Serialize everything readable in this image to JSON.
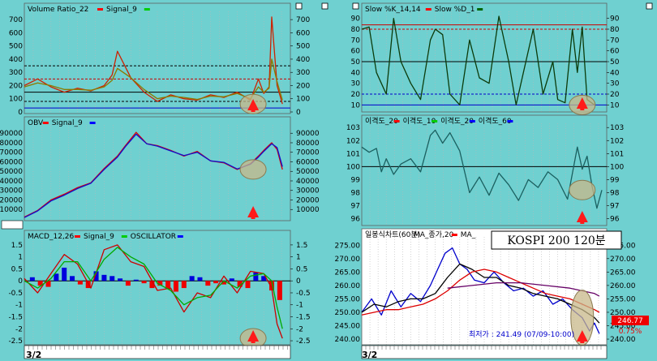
{
  "colors": {
    "bg": "#6fd0d0",
    "grid": "#b8b8b8",
    "price_panel_bg": "#ffffff",
    "marker": "#ff1a1a",
    "highlight": "#c8b88a"
  },
  "footer": {
    "left_date": "3/2",
    "right_date": "3/2"
  },
  "chart_data": [
    {
      "id": "volume_ratio",
      "type": "line",
      "title_parts": [
        {
          "text": "Volume Ratio_22",
          "color": "#000000",
          "marker": "#ff0000"
        },
        {
          "text": "Signal_9",
          "color": "#000000",
          "marker": "#00cc00"
        }
      ],
      "ylim": [
        0,
        750
      ],
      "yticks_left": [
        "700",
        "600",
        "500",
        "400",
        "300",
        "200",
        "100",
        "0"
      ],
      "yticks_right": [
        "700",
        "600",
        "500",
        "400",
        "300",
        "200",
        "100",
        "0"
      ],
      "ref_lines": [
        {
          "y": 350,
          "color": "#000000",
          "dash": true
        },
        {
          "y": 250,
          "color": "#cc0000",
          "dash": true
        },
        {
          "y": 150,
          "color": "#000000",
          "dash": false
        },
        {
          "y": 80,
          "color": "#000000",
          "dash": true
        },
        {
          "y": 30,
          "color": "#0000cc",
          "dash": false
        }
      ],
      "series": [
        {
          "color": "#cc2200",
          "x": [
            0,
            0.05,
            0.1,
            0.15,
            0.2,
            0.25,
            0.3,
            0.33,
            0.35,
            0.4,
            0.45,
            0.5,
            0.55,
            0.6,
            0.65,
            0.7,
            0.75,
            0.8,
            0.85,
            0.88,
            0.9,
            0.92,
            0.93,
            0.95,
            0.97
          ],
          "values": [
            200,
            250,
            190,
            150,
            180,
            160,
            200,
            280,
            460,
            260,
            150,
            80,
            130,
            100,
            90,
            130,
            110,
            150,
            90,
            250,
            140,
            190,
            720,
            200,
            60
          ]
        },
        {
          "color": "#8a7a00",
          "x": [
            0,
            0.05,
            0.1,
            0.15,
            0.2,
            0.25,
            0.3,
            0.33,
            0.35,
            0.4,
            0.45,
            0.5,
            0.55,
            0.6,
            0.65,
            0.7,
            0.75,
            0.8,
            0.85,
            0.88,
            0.9,
            0.92,
            0.93,
            0.95,
            0.97
          ],
          "values": [
            190,
            220,
            200,
            170,
            170,
            165,
            190,
            240,
            330,
            260,
            170,
            100,
            120,
            110,
            95,
            120,
            115,
            140,
            100,
            190,
            150,
            180,
            400,
            230,
            90
          ]
        }
      ]
    },
    {
      "id": "obv",
      "type": "line",
      "title_parts": [
        {
          "text": "OBV",
          "color": "#000000",
          "marker": "#ff0000"
        },
        {
          "text": "Signal_9",
          "color": "#000000",
          "marker": "#0000ff"
        }
      ],
      "ylim": [
        0,
        97000
      ],
      "yticks_left": [
        "90000",
        "80000",
        "70000",
        "60000",
        "50000",
        "40000",
        "30000",
        "20000",
        "10000"
      ],
      "yticks_right": [
        "90000",
        "80000",
        "70000",
        "60000",
        "50000",
        "40000",
        "30000",
        "20000",
        "10000"
      ],
      "series": [
        {
          "color": "#dd0000",
          "x": [
            0,
            0.05,
            0.1,
            0.15,
            0.2,
            0.25,
            0.3,
            0.35,
            0.38,
            0.42,
            0.46,
            0.5,
            0.55,
            0.6,
            0.65,
            0.7,
            0.75,
            0.8,
            0.85,
            0.88,
            0.9,
            0.93,
            0.95,
            0.97
          ],
          "values": [
            2000,
            9000,
            20000,
            26000,
            33000,
            38000,
            53000,
            66000,
            77000,
            91000,
            79000,
            77000,
            72000,
            66000,
            71000,
            61000,
            59000,
            52000,
            58000,
            66000,
            72000,
            80000,
            73000,
            52000
          ]
        },
        {
          "color": "#1010cc",
          "x": [
            0,
            0.05,
            0.1,
            0.15,
            0.2,
            0.25,
            0.3,
            0.35,
            0.38,
            0.42,
            0.46,
            0.5,
            0.55,
            0.6,
            0.65,
            0.7,
            0.75,
            0.8,
            0.85,
            0.88,
            0.9,
            0.93,
            0.95,
            0.97
          ],
          "values": [
            1500,
            8500,
            19000,
            25000,
            32000,
            37500,
            52000,
            65000,
            76000,
            89000,
            79000,
            76500,
            71500,
            66500,
            70000,
            61000,
            59500,
            52500,
            57500,
            65000,
            71000,
            79000,
            75000,
            55000
          ]
        }
      ]
    },
    {
      "id": "macd",
      "type": "line",
      "title_parts": [
        {
          "text": "MACD_12,26",
          "color": "#000000",
          "marker": "#ff0000"
        },
        {
          "text": "Signal_9",
          "color": "#000000",
          "marker": "#00cc00"
        },
        {
          "text": "OSCILLATOR",
          "color": "#000000",
          "marker": "#0000ff"
        }
      ],
      "ylim": [
        -2.6,
        1.7
      ],
      "yticks_left": [
        "1.5",
        "1",
        "0.5",
        "0",
        "-0.5",
        "-1",
        "-1.5",
        "-2",
        "-2.5"
      ],
      "yticks_right": [
        "1.5",
        "1",
        "0.5",
        "0",
        "-0.5",
        "-1",
        "-1.5",
        "-2",
        "-2.5"
      ],
      "zero_line": 0,
      "series": [
        {
          "color": "#cc0000",
          "x": [
            0,
            0.05,
            0.1,
            0.15,
            0.2,
            0.25,
            0.3,
            0.35,
            0.4,
            0.45,
            0.5,
            0.55,
            0.6,
            0.65,
            0.7,
            0.75,
            0.8,
            0.85,
            0.9,
            0.93,
            0.95,
            0.97
          ],
          "values": [
            0.1,
            -0.5,
            0.3,
            1.1,
            0.7,
            -0.3,
            1.3,
            1.5,
            0.8,
            0.6,
            -0.4,
            -0.3,
            -1.3,
            -0.5,
            -0.7,
            0.2,
            -0.5,
            0.4,
            0.3,
            -0.3,
            -1.8,
            -2.4
          ]
        },
        {
          "color": "#00aa00",
          "x": [
            0,
            0.05,
            0.1,
            0.15,
            0.2,
            0.25,
            0.3,
            0.35,
            0.4,
            0.45,
            0.5,
            0.55,
            0.6,
            0.65,
            0.7,
            0.75,
            0.8,
            0.85,
            0.9,
            0.93,
            0.95,
            0.97
          ],
          "values": [
            0.0,
            -0.3,
            0.1,
            0.8,
            0.8,
            0.0,
            0.9,
            1.4,
            1.0,
            0.7,
            -0.1,
            -0.4,
            -1.0,
            -0.7,
            -0.6,
            0.0,
            -0.3,
            0.2,
            0.3,
            0.0,
            -1.1,
            -2.0
          ]
        }
      ],
      "oscillator": {
        "pos_color": "#0000dd",
        "neg_color": "#ee0000",
        "x": [
          0.03,
          0.06,
          0.09,
          0.12,
          0.15,
          0.18,
          0.21,
          0.24,
          0.27,
          0.3,
          0.33,
          0.36,
          0.39,
          0.42,
          0.45,
          0.48,
          0.51,
          0.54,
          0.57,
          0.6,
          0.63,
          0.66,
          0.69,
          0.72,
          0.75,
          0.78,
          0.81,
          0.84,
          0.87,
          0.9,
          0.93,
          0.96
        ],
        "values": [
          0.15,
          -0.2,
          -0.25,
          0.3,
          0.55,
          0.2,
          -0.15,
          -0.3,
          0.4,
          0.25,
          0.2,
          0.1,
          -0.2,
          0.05,
          -0.1,
          -0.3,
          -0.2,
          -0.35,
          -0.45,
          -0.3,
          0.2,
          0.15,
          -0.2,
          -0.1,
          -0.15,
          0.1,
          -0.25,
          -0.3,
          0.35,
          0.2,
          -0.4,
          -0.8
        ]
      }
    },
    {
      "id": "slow_stoch",
      "type": "line",
      "title_parts": [
        {
          "text": "Slow %K_14,14",
          "color": "#000000",
          "marker": "#ff0000"
        },
        {
          "text": "Slow %D_1",
          "color": "#000000",
          "marker": "#006600"
        }
      ],
      "ylim": [
        5,
        95
      ],
      "yticks_left": [
        "90",
        "80",
        "70",
        "60",
        "50",
        "40",
        "30",
        "20",
        "10"
      ],
      "yticks_right": [
        "90",
        "80",
        "70",
        "60",
        "50",
        "40",
        "30",
        "20",
        "10"
      ],
      "ref_lines": [
        {
          "y": 84,
          "color": "#cc0000",
          "dash": false
        },
        {
          "y": 80,
          "color": "#cc0000",
          "dash": true
        },
        {
          "y": 50,
          "color": "#000000",
          "dash": false
        },
        {
          "y": 20,
          "color": "#0000cc",
          "dash": true
        },
        {
          "y": 10,
          "color": "#0000cc",
          "dash": false
        }
      ],
      "series": [
        {
          "color": "#0b3b0b",
          "x": [
            0,
            0.03,
            0.06,
            0.1,
            0.13,
            0.16,
            0.2,
            0.24,
            0.28,
            0.3,
            0.33,
            0.36,
            0.4,
            0.44,
            0.48,
            0.52,
            0.56,
            0.6,
            0.63,
            0.66,
            0.7,
            0.74,
            0.78,
            0.8,
            0.83,
            0.86,
            0.88,
            0.9,
            0.92,
            0.95
          ],
          "values": [
            80,
            82,
            40,
            20,
            90,
            50,
            30,
            15,
            70,
            80,
            75,
            20,
            10,
            70,
            35,
            30,
            92,
            50,
            10,
            40,
            80,
            20,
            50,
            15,
            12,
            80,
            40,
            82,
            15,
            10
          ]
        }
      ]
    },
    {
      "id": "disparity",
      "type": "line",
      "title_parts": [
        {
          "text": "이격도_20",
          "color": "#000000",
          "marker": "#ff0000"
        },
        {
          "text": "이격도_10",
          "color": "#000000",
          "marker": "#00cc00"
        },
        {
          "text": "이격도_20",
          "color": "#000000",
          "marker": "#0000ff"
        },
        {
          "text": "이격도_60",
          "color": "#000000",
          "marker": "#0000ff"
        }
      ],
      "ylim": [
        95.6,
        103.2
      ],
      "yticks_left": [
        "103",
        "102",
        "101",
        "100",
        "99",
        "98",
        "97",
        "96"
      ],
      "yticks_right": [
        "103",
        "102",
        "101",
        "100",
        "99",
        "98",
        "97",
        "96"
      ],
      "ref_lines": [
        {
          "y": 100,
          "color": "#000000",
          "dash": false
        }
      ],
      "series": [
        {
          "color": "#1a6060",
          "x": [
            0,
            0.03,
            0.06,
            0.08,
            0.1,
            0.13,
            0.16,
            0.2,
            0.24,
            0.28,
            0.3,
            0.33,
            0.36,
            0.4,
            0.44,
            0.48,
            0.52,
            0.56,
            0.6,
            0.64,
            0.68,
            0.72,
            0.76,
            0.8,
            0.84,
            0.88,
            0.9,
            0.92,
            0.94,
            0.96,
            0.98
          ],
          "values": [
            101.5,
            101.1,
            101.4,
            99.6,
            100.6,
            99.4,
            100.2,
            100.6,
            99.6,
            102.4,
            102.8,
            101.8,
            102.6,
            101.2,
            98.0,
            99.2,
            97.8,
            99.5,
            98.6,
            97.4,
            99.0,
            98.4,
            99.6,
            99.0,
            97.5,
            101.5,
            99.8,
            100.8,
            98.5,
            96.8,
            98.2
          ]
        }
      ]
    },
    {
      "id": "price",
      "type": "line",
      "title_parts": [
        {
          "text": "일봉식차트(60분)",
          "color": "#000000",
          "marker": ""
        },
        {
          "text": "MA_종가,20",
          "color": "#000000",
          "marker": "#ff0000"
        },
        {
          "text": "MA_",
          "color": "#000000",
          "marker": ""
        }
      ],
      "annotation_box": "KOSPI 200 120분",
      "min_label": "최저가 : 241.49 (07/09-10:00)",
      "last_price": "246.77",
      "last_change": "0.75%",
      "ylim": [
        238.5,
        277.5
      ],
      "yticks_left": [
        "275.00",
        "270.00",
        "265.00",
        "260.00",
        "255.00",
        "250.00",
        "245.00",
        "240.00"
      ],
      "yticks_right": [
        "275.00",
        "270.00",
        "265.00",
        "260.00",
        "255.00",
        "250.00",
        "245.00",
        "240.00"
      ],
      "series": [
        {
          "color": "#0000cc",
          "x": [
            0,
            0.04,
            0.08,
            0.12,
            0.16,
            0.2,
            0.24,
            0.28,
            0.31,
            0.34,
            0.37,
            0.4,
            0.43,
            0.46,
            0.5,
            0.54,
            0.58,
            0.62,
            0.66,
            0.7,
            0.74,
            0.78,
            0.82,
            0.86,
            0.9,
            0.93,
            0.95,
            0.97
          ],
          "values": [
            250,
            255,
            249,
            258,
            252,
            257,
            254,
            260,
            266,
            272,
            274,
            268,
            266,
            262,
            261,
            265,
            261,
            258,
            259,
            256,
            258,
            253,
            255,
            251,
            248,
            243,
            246,
            242
          ]
        },
        {
          "color": "#000000",
          "x": [
            0,
            0.05,
            0.1,
            0.15,
            0.2,
            0.25,
            0.3,
            0.35,
            0.4,
            0.45,
            0.5,
            0.55,
            0.6,
            0.65,
            0.7,
            0.75,
            0.8,
            0.85,
            0.9,
            0.95,
            0.97
          ],
          "values": [
            250,
            253,
            252,
            254,
            255,
            255,
            257,
            263,
            268,
            266,
            263,
            263,
            260,
            259,
            257,
            256,
            255,
            253,
            251,
            248,
            246
          ]
        },
        {
          "color": "#dd0000",
          "x": [
            0,
            0.05,
            0.1,
            0.15,
            0.2,
            0.25,
            0.3,
            0.35,
            0.4,
            0.45,
            0.5,
            0.55,
            0.6,
            0.65,
            0.7,
            0.75,
            0.8,
            0.85,
            0.9,
            0.95,
            0.97
          ],
          "values": [
            249,
            250,
            251,
            251,
            252,
            253,
            255,
            258,
            262,
            265,
            266,
            265,
            263,
            261,
            259,
            257,
            256,
            255,
            253,
            251,
            250
          ]
        },
        {
          "color": "#660066",
          "x": [
            0.35,
            0.45,
            0.55,
            0.65,
            0.75,
            0.85,
            0.9,
            0.95,
            0.97
          ],
          "values": [
            259,
            260,
            261,
            261,
            260,
            259,
            258,
            257,
            256
          ]
        }
      ]
    }
  ]
}
